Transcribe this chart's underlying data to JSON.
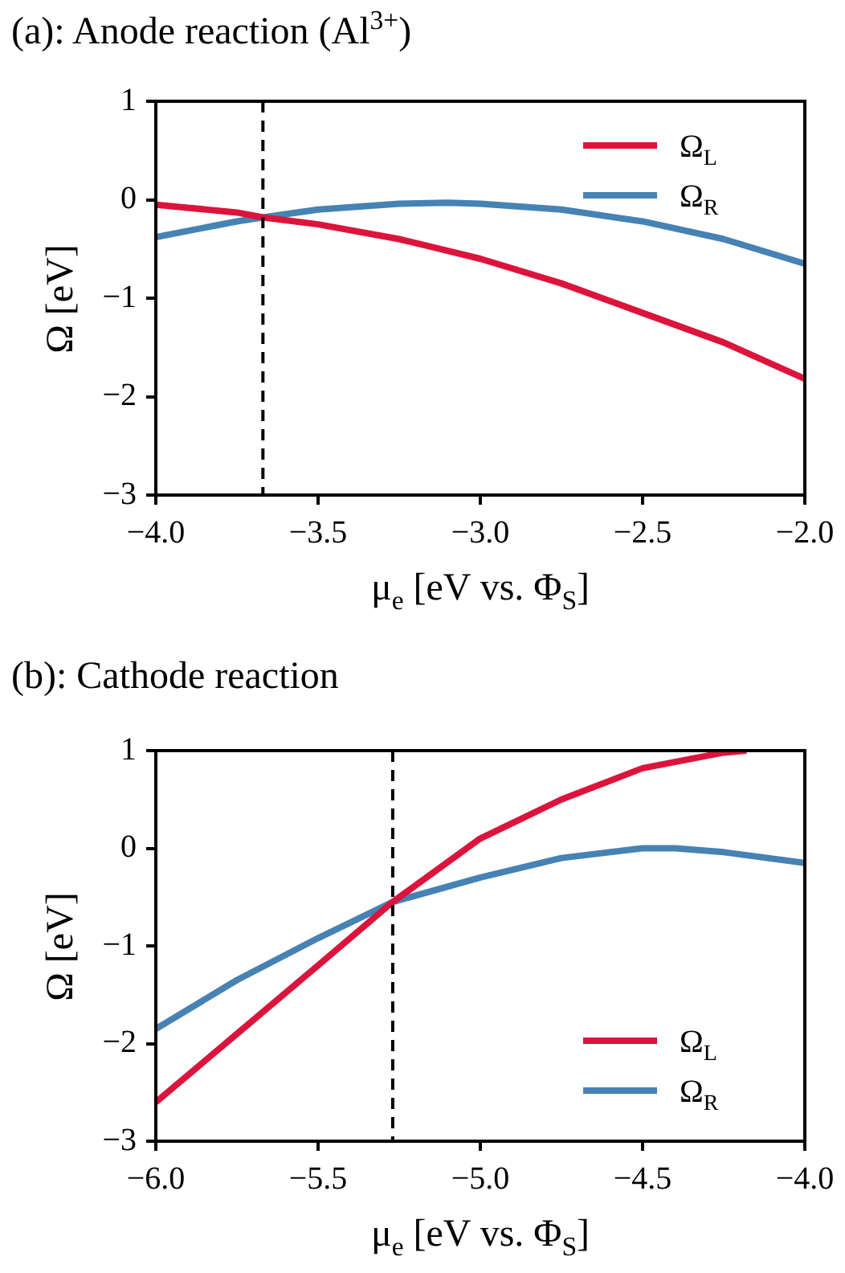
{
  "chart_data": [
    {
      "type": "line",
      "title": "(a): Anode reaction (Al$^{3+}$)",
      "xlabel": "μ$_{e}$ [eV vs. Φ$_{S}$]",
      "ylabel": "Ω [eV]",
      "x": [
        -4.0,
        -3.75,
        -3.67,
        -3.5,
        -3.25,
        -3.1,
        -3.0,
        -2.75,
        -2.5,
        -2.25,
        -2.0
      ],
      "series": [
        {
          "name": "Ω$_{L}$",
          "color": "#dc143c",
          "values": [
            -0.05,
            -0.13,
            -0.18,
            -0.25,
            -0.4,
            -0.52,
            -0.6,
            -0.85,
            -1.15,
            -1.45,
            -1.82
          ]
        },
        {
          "name": "Ω$_{R}$",
          "color": "#4682b4",
          "values": [
            -0.38,
            -0.22,
            -0.18,
            -0.1,
            -0.04,
            -0.03,
            -0.04,
            -0.1,
            -0.22,
            -0.4,
            -0.65
          ]
        }
      ],
      "xlim": [
        -4.0,
        -2.0
      ],
      "ylim": [
        -3,
        1
      ],
      "xticks": [
        {
          "value": -4.0,
          "label": "−4.0"
        },
        {
          "value": -3.5,
          "label": "−3.5"
        },
        {
          "value": -3.0,
          "label": "−3.0"
        },
        {
          "value": -2.5,
          "label": "−2.5"
        },
        {
          "value": -2.0,
          "label": "−2.0"
        }
      ],
      "yticks": [
        {
          "value": -3,
          "label": "−3"
        },
        {
          "value": -2,
          "label": "−2"
        },
        {
          "value": -1,
          "label": "−1"
        },
        {
          "value": 0,
          "label": "0"
        },
        {
          "value": 1,
          "label": "1"
        }
      ],
      "ref_lines": [
        {
          "axis": "x",
          "value": -3.67,
          "color": "#000000",
          "line_style": "dashed"
        }
      ],
      "legend": "top right",
      "marker": "none",
      "line_style": "solid",
      "grid": false
    },
    {
      "type": "line",
      "title": "(b): Cathode reaction",
      "xlabel": "μ$_{e}$ [eV vs. Φ$_{S}$]",
      "ylabel": "Ω [eV]",
      "series": [
        {
          "name": "Ω$_{L}$",
          "color": "#dc143c",
          "x": [
            -6.0,
            -5.75,
            -5.5,
            -5.27,
            -5.0,
            -4.75,
            -4.5,
            -4.25,
            -4.18
          ],
          "values": [
            -2.6,
            -1.9,
            -1.2,
            -0.55,
            0.1,
            0.5,
            0.82,
            0.98,
            1.0
          ]
        },
        {
          "name": "Ω$_{R}$",
          "color": "#4682b4",
          "x": [
            -6.0,
            -5.75,
            -5.5,
            -5.27,
            -5.0,
            -4.75,
            -4.5,
            -4.4,
            -4.25,
            -4.0
          ],
          "values": [
            -1.85,
            -1.35,
            -0.92,
            -0.55,
            -0.3,
            -0.1,
            0.0,
            0.0,
            -0.04,
            -0.15
          ]
        }
      ],
      "xlim": [
        -6.0,
        -4.0
      ],
      "ylim": [
        -3,
        1
      ],
      "xticks": [
        {
          "value": -6.0,
          "label": "−6.0"
        },
        {
          "value": -5.5,
          "label": "−5.5"
        },
        {
          "value": -5.0,
          "label": "−5.0"
        },
        {
          "value": -4.5,
          "label": "−4.5"
        },
        {
          "value": -4.0,
          "label": "−4.0"
        }
      ],
      "yticks": [
        {
          "value": -3,
          "label": "−3"
        },
        {
          "value": -2,
          "label": "−2"
        },
        {
          "value": -1,
          "label": "−1"
        },
        {
          "value": 0,
          "label": "0"
        },
        {
          "value": 1,
          "label": "1"
        }
      ],
      "ref_lines": [
        {
          "axis": "x",
          "value": -5.27,
          "color": "#000000",
          "line_style": "dashed"
        }
      ],
      "legend": "bottom right",
      "marker": "none",
      "line_style": "solid",
      "grid": false
    }
  ]
}
